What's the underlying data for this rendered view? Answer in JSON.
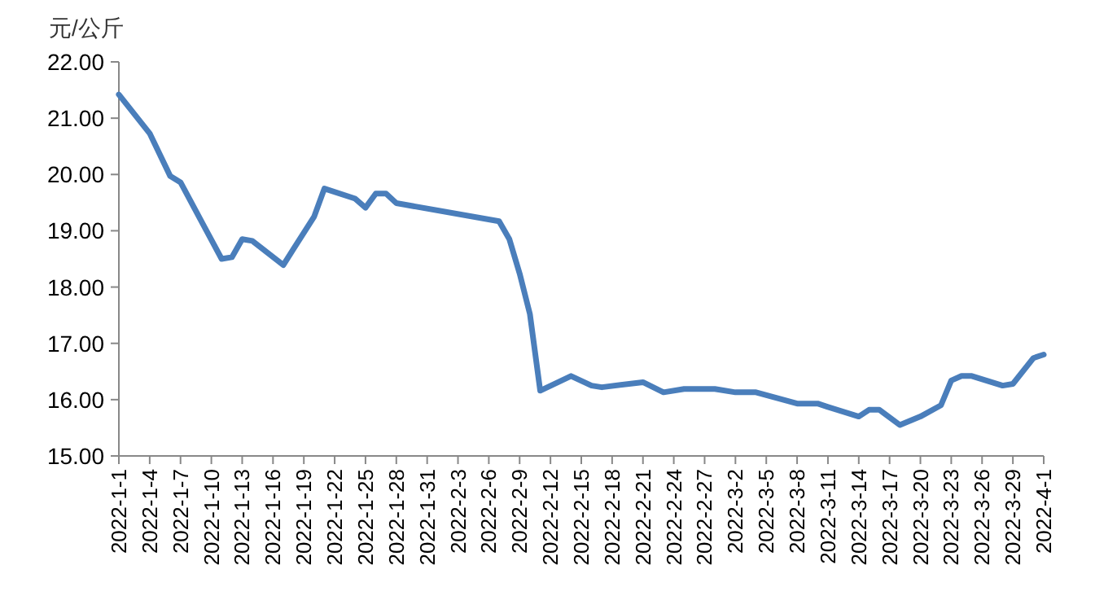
{
  "chart_data": {
    "type": "line",
    "ylabel": "元/公斤",
    "grid": false,
    "marker": "none",
    "line_style": "solid",
    "x": [
      "2022-01-01",
      "2022-01-04",
      "2022-01-06",
      "2022-01-07",
      "2022-01-11",
      "2022-01-12",
      "2022-01-13",
      "2022-01-14",
      "2022-01-17",
      "2022-01-18",
      "2022-01-20",
      "2022-01-21",
      "2022-01-24",
      "2022-01-25",
      "2022-01-26",
      "2022-01-27",
      "2022-01-28",
      "2022-02-07",
      "2022-02-08",
      "2022-02-09",
      "2022-02-10",
      "2022-02-11",
      "2022-02-14",
      "2022-02-16",
      "2022-02-17",
      "2022-02-21",
      "2022-02-23",
      "2022-02-25",
      "2022-02-28",
      "2022-03-02",
      "2022-03-04",
      "2022-03-08",
      "2022-03-10",
      "2022-03-11",
      "2022-03-14",
      "2022-03-15",
      "2022-03-16",
      "2022-03-18",
      "2022-03-20",
      "2022-03-22",
      "2022-03-23",
      "2022-03-24",
      "2022-03-25",
      "2022-03-28",
      "2022-03-29",
      "2022-03-31",
      "2022-04-01"
    ],
    "series": [
      {
        "color": "#4a7ebb",
        "values": [
          21.42,
          20.73,
          19.97,
          19.86,
          18.5,
          18.53,
          18.85,
          18.82,
          18.39,
          18.68,
          19.25,
          19.75,
          19.57,
          19.41,
          19.66,
          19.66,
          19.49,
          19.17,
          18.85,
          18.24,
          17.52,
          16.16,
          16.42,
          16.25,
          16.22,
          16.31,
          16.13,
          16.19,
          16.19,
          16.13,
          16.13,
          15.93,
          15.93,
          15.87,
          15.7,
          15.82,
          15.82,
          15.55,
          15.7,
          15.9,
          16.34,
          16.42,
          16.42,
          16.25,
          16.28,
          16.74,
          16.8
        ]
      }
    ],
    "xlim": [
      "2022-01-01",
      "2022-04-01"
    ],
    "xticks": [
      {
        "value": "2022-01-01",
        "label": "2022-1-1"
      },
      {
        "value": "2022-01-04",
        "label": "2022-1-4"
      },
      {
        "value": "2022-01-07",
        "label": "2022-1-7"
      },
      {
        "value": "2022-01-10",
        "label": "2022-1-10"
      },
      {
        "value": "2022-01-13",
        "label": "2022-1-13"
      },
      {
        "value": "2022-01-16",
        "label": "2022-1-16"
      },
      {
        "value": "2022-01-19",
        "label": "2022-1-19"
      },
      {
        "value": "2022-01-22",
        "label": "2022-1-22"
      },
      {
        "value": "2022-01-25",
        "label": "2022-1-25"
      },
      {
        "value": "2022-01-28",
        "label": "2022-1-28"
      },
      {
        "value": "2022-01-31",
        "label": "2022-1-31"
      },
      {
        "value": "2022-02-03",
        "label": "2022-2-3"
      },
      {
        "value": "2022-02-06",
        "label": "2022-2-6"
      },
      {
        "value": "2022-02-09",
        "label": "2022-2-9"
      },
      {
        "value": "2022-02-12",
        "label": "2022-2-12"
      },
      {
        "value": "2022-02-15",
        "label": "2022-2-15"
      },
      {
        "value": "2022-02-18",
        "label": "2022-2-18"
      },
      {
        "value": "2022-02-21",
        "label": "2022-2-21"
      },
      {
        "value": "2022-02-24",
        "label": "2022-2-24"
      },
      {
        "value": "2022-02-27",
        "label": "2022-2-27"
      },
      {
        "value": "2022-03-02",
        "label": "2022-3-2"
      },
      {
        "value": "2022-03-05",
        "label": "2022-3-5"
      },
      {
        "value": "2022-03-08",
        "label": "2022-3-8"
      },
      {
        "value": "2022-03-11",
        "label": "2022-3-11"
      },
      {
        "value": "2022-03-14",
        "label": "2022-3-14"
      },
      {
        "value": "2022-03-17",
        "label": "2022-3-17"
      },
      {
        "value": "2022-03-20",
        "label": "2022-3-20"
      },
      {
        "value": "2022-03-23",
        "label": "2022-3-23"
      },
      {
        "value": "2022-03-26",
        "label": "2022-3-26"
      },
      {
        "value": "2022-03-29",
        "label": "2022-3-29"
      },
      {
        "value": "2022-04-01",
        "label": "2022-4-1"
      }
    ],
    "ylim": [
      15,
      22
    ],
    "yticks": [
      {
        "value": 15,
        "label": "15.00"
      },
      {
        "value": 16,
        "label": "16.00"
      },
      {
        "value": 17,
        "label": "17.00"
      },
      {
        "value": 18,
        "label": "18.00"
      },
      {
        "value": 19,
        "label": "19.00"
      },
      {
        "value": 20,
        "label": "20.00"
      },
      {
        "value": 21,
        "label": "21.00"
      },
      {
        "value": 22,
        "label": "22.00"
      }
    ]
  }
}
